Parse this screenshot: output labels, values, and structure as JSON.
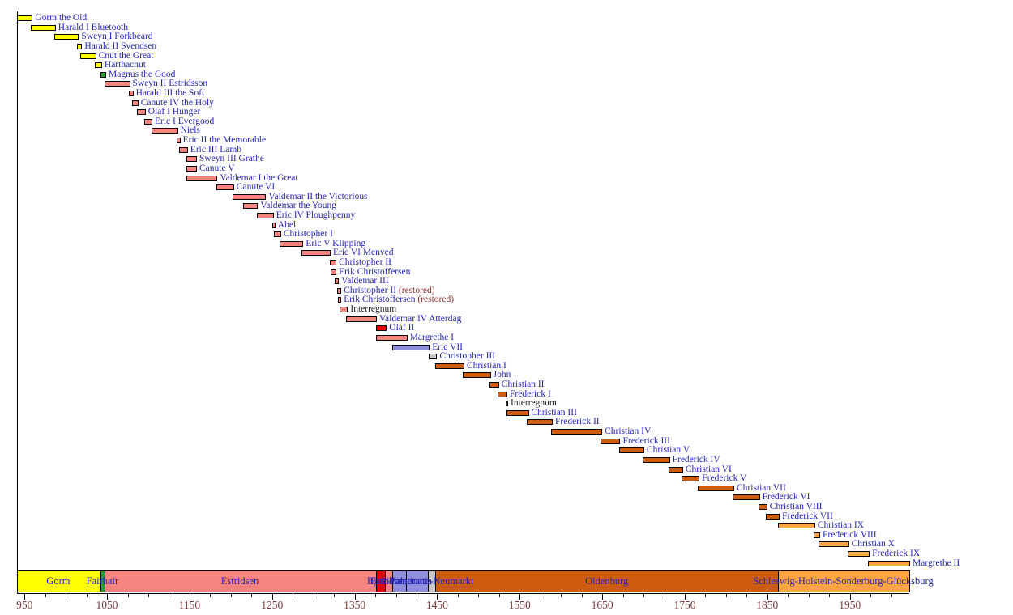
{
  "chart_data": {
    "type": "timeline",
    "description": "Reigns of Danish monarchs from Gorm the Old to Margrethe II with royal house dynasty bands",
    "x_axis": {
      "min": 941,
      "max": 2022,
      "major_ticks": [
        950,
        1050,
        1150,
        1250,
        1350,
        1450,
        1550,
        1650,
        1750,
        1850,
        1950
      ],
      "minor_tick_start": 950,
      "minor_tick_end": 2000,
      "minor_tick_step": 25,
      "tick_label_color": "#7a3b3b"
    },
    "houses": {
      "gorm": "#ffff00",
      "fairhair": "#1fa020",
      "estridsen": "#f8847f",
      "bjelbo": "#e80000",
      "pomerania": "#8e8edd",
      "palatinate": "#c9c9c9",
      "oldenburg": "#cd5c0d",
      "glucksburg": "#ffa640",
      "interregnum": "#2a2a2a"
    },
    "reigns": [
      {
        "name": "Gorm the Old",
        "start": 936,
        "end": 958,
        "house": "gorm"
      },
      {
        "name": "Harald I Bluetooth",
        "start": 958,
        "end": 986,
        "house": "gorm"
      },
      {
        "name": "Sweyn I Forkbeard",
        "start": 986,
        "end": 1014,
        "house": "gorm"
      },
      {
        "name": "Harald II Svendsen",
        "start": 1014,
        "end": 1018,
        "house": "gorm"
      },
      {
        "name": "Cnut the Great",
        "start": 1018,
        "end": 1035,
        "house": "gorm"
      },
      {
        "name": "Harthacnut",
        "start": 1035,
        "end": 1042,
        "house": "gorm"
      },
      {
        "name": "Magnus the Good",
        "start": 1042,
        "end": 1047,
        "house": "fairhair"
      },
      {
        "name": "Sweyn II Estridsson",
        "start": 1047,
        "end": 1076,
        "house": "estridsen"
      },
      {
        "name": "Harald III the Soft",
        "start": 1076,
        "end": 1080,
        "house": "estridsen"
      },
      {
        "name": "Canute IV the Holy",
        "start": 1080,
        "end": 1086,
        "house": "estridsen"
      },
      {
        "name": "Olaf I Hunger",
        "start": 1086,
        "end": 1095,
        "house": "estridsen"
      },
      {
        "name": "Eric I Evergood",
        "start": 1095,
        "end": 1103,
        "house": "estridsen"
      },
      {
        "name": "Niels",
        "start": 1104,
        "end": 1134,
        "house": "estridsen"
      },
      {
        "name": "Eric II the Memorable",
        "start": 1134,
        "end": 1137,
        "house": "estridsen"
      },
      {
        "name": "Eric III Lamb",
        "start": 1137,
        "end": 1146,
        "house": "estridsen"
      },
      {
        "name": "Sweyn III Grathe",
        "start": 1146,
        "end": 1157,
        "house": "estridsen"
      },
      {
        "name": "Canute V",
        "start": 1146,
        "end": 1157,
        "house": "estridsen"
      },
      {
        "name": "Valdemar I the Great",
        "start": 1146,
        "end": 1182,
        "house": "estridsen"
      },
      {
        "name": "Canute VI",
        "start": 1182,
        "end": 1202,
        "house": "estridsen"
      },
      {
        "name": "Valdemar II the Victorious",
        "start": 1202,
        "end": 1241,
        "house": "estridsen"
      },
      {
        "name": "Valdemar the Young",
        "start": 1215,
        "end": 1231,
        "house": "estridsen"
      },
      {
        "name": "Eric IV Ploughpenny",
        "start": 1232,
        "end": 1250,
        "house": "estridsen"
      },
      {
        "name": "Abel",
        "start": 1250,
        "end": 1252,
        "house": "estridsen"
      },
      {
        "name": "Christopher I",
        "start": 1252,
        "end": 1259,
        "house": "estridsen"
      },
      {
        "name": "Eric V Klipping",
        "start": 1259,
        "end": 1286,
        "house": "estridsen"
      },
      {
        "name": "Eric VI Menved",
        "start": 1286,
        "end": 1319,
        "house": "estridsen"
      },
      {
        "name": "Christopher II",
        "start": 1320,
        "end": 1326,
        "house": "estridsen"
      },
      {
        "name": "Erik Christoffersen",
        "start": 1321,
        "end": 1326,
        "house": "estridsen"
      },
      {
        "name": "Valdemar III",
        "start": 1326,
        "end": 1329,
        "house": "estridsen"
      },
      {
        "name": "Christopher II",
        "start": 1329,
        "end": 1332,
        "house": "estridsen",
        "suffix": " (restored)"
      },
      {
        "name": "Erik Christoffersen",
        "start": 1330,
        "end": 1332,
        "house": "estridsen",
        "suffix": " (restored)"
      },
      {
        "name": "Interregnum",
        "start": 1332,
        "end": 1340,
        "house": "estridsen",
        "plain": true
      },
      {
        "name": "Valdemar IV Atterdag",
        "start": 1340,
        "end": 1375,
        "house": "estridsen"
      },
      {
        "name": "Olaf II",
        "start": 1376,
        "end": 1387,
        "house": "bjelbo"
      },
      {
        "name": "Margrethe I",
        "start": 1376,
        "end": 1412,
        "house": "estridsen"
      },
      {
        "name": "Eric VII",
        "start": 1396,
        "end": 1439,
        "house": "pomerania"
      },
      {
        "name": "Christopher III",
        "start": 1440,
        "end": 1448,
        "house": "palatinate"
      },
      {
        "name": "Christian I",
        "start": 1448,
        "end": 1481,
        "house": "oldenburg"
      },
      {
        "name": "John",
        "start": 1481,
        "end": 1513,
        "house": "oldenburg"
      },
      {
        "name": "Christian II",
        "start": 1513,
        "end": 1523,
        "house": "oldenburg"
      },
      {
        "name": "Frederick I",
        "start": 1523,
        "end": 1533,
        "house": "oldenburg"
      },
      {
        "name": "Interregnum",
        "start": 1533,
        "end": 1534,
        "house": "interregnum",
        "plain": true
      },
      {
        "name": "Christian III",
        "start": 1534,
        "end": 1559,
        "house": "oldenburg"
      },
      {
        "name": "Frederick II",
        "start": 1559,
        "end": 1588,
        "house": "oldenburg"
      },
      {
        "name": "Christian IV",
        "start": 1588,
        "end": 1648,
        "house": "oldenburg"
      },
      {
        "name": "Frederick III",
        "start": 1648,
        "end": 1670,
        "house": "oldenburg"
      },
      {
        "name": "Christian V",
        "start": 1670,
        "end": 1699,
        "house": "oldenburg"
      },
      {
        "name": "Frederick IV",
        "start": 1699,
        "end": 1730,
        "house": "oldenburg"
      },
      {
        "name": "Christian VI",
        "start": 1730,
        "end": 1746,
        "house": "oldenburg"
      },
      {
        "name": "Frederick V",
        "start": 1746,
        "end": 1766,
        "house": "oldenburg"
      },
      {
        "name": "Christian VII",
        "start": 1766,
        "end": 1808,
        "house": "oldenburg"
      },
      {
        "name": "Frederick VI",
        "start": 1808,
        "end": 1839,
        "house": "oldenburg"
      },
      {
        "name": "Christian VIII",
        "start": 1839,
        "end": 1848,
        "house": "oldenburg"
      },
      {
        "name": "Frederick VII",
        "start": 1848,
        "end": 1863,
        "house": "oldenburg"
      },
      {
        "name": "Christian IX",
        "start": 1863,
        "end": 1906,
        "house": "glucksburg"
      },
      {
        "name": "Frederick VIII",
        "start": 1906,
        "end": 1912,
        "house": "glucksburg"
      },
      {
        "name": "Christian X",
        "start": 1912,
        "end": 1947,
        "house": "glucksburg"
      },
      {
        "name": "Frederick IX",
        "start": 1947,
        "end": 1972,
        "house": "glucksburg"
      },
      {
        "name": "Margrethe II",
        "start": 1972,
        "end": 2021,
        "house": "glucksburg"
      }
    ],
    "dynasty_band": {
      "segments": [
        {
          "start": 941,
          "end": 1042,
          "house": "gorm"
        },
        {
          "start": 1042,
          "end": 1047,
          "house": "fairhair"
        },
        {
          "start": 1047,
          "end": 1376,
          "house": "estridsen"
        },
        {
          "start": 1376,
          "end": 1387,
          "house": "bjelbo"
        },
        {
          "start": 1387,
          "end": 1396,
          "house": "estridsen"
        },
        {
          "start": 1396,
          "end": 1412,
          "house": "pomerania"
        },
        {
          "start": 1412,
          "end": 1439,
          "house": "pomerania"
        },
        {
          "start": 1439,
          "end": 1448,
          "house": "palatinate"
        },
        {
          "start": 1448,
          "end": 1863,
          "house": "oldenburg"
        },
        {
          "start": 1863,
          "end": 2021,
          "house": "glucksburg"
        }
      ],
      "labels": [
        {
          "text": "Gorm",
          "center_year": 991
        },
        {
          "text": "Fairhair",
          "center_year": 1044.5
        },
        {
          "text": "Estridsen",
          "center_year": 1211
        },
        {
          "text": "Bjelbo",
          "center_year": 1381.5
        },
        {
          "text": "Estridsen",
          "center_year": 1391.5
        },
        {
          "text": "Pomerania",
          "center_year": 1417.5
        },
        {
          "text": "Palatinate-Neumarkt",
          "center_year": 1443.5
        },
        {
          "text": "Oldenburg",
          "center_year": 1655.5
        },
        {
          "text": "Schleswig-Holstein-Sonderburg-Glücksburg",
          "center_year": 1942
        }
      ]
    },
    "styles": {
      "label_color": "#2525bb",
      "restored_suffix_color": "#8e3030",
      "interregnum_label_color": "#1a1a1a",
      "band_label_color": "#2525bb",
      "axis_color": "#000000",
      "background": "#ffffff"
    }
  }
}
